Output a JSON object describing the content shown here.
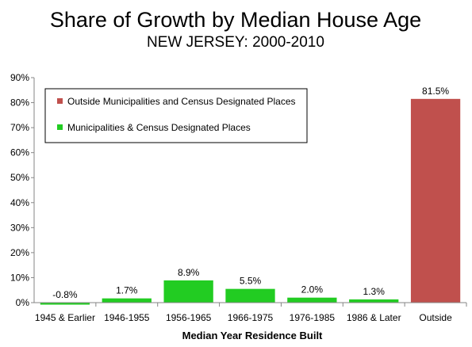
{
  "chart_data": {
    "type": "bar",
    "title": "Share of Growth by Median House Age",
    "subtitle": "NEW JERSEY: 2000-2010",
    "xlabel": "Median Year Residence Built",
    "ylabel": "",
    "ylim": [
      0,
      90
    ],
    "y_ticks": [
      0,
      10,
      20,
      30,
      40,
      50,
      60,
      70,
      80,
      90
    ],
    "y_tick_format": "{v}%",
    "categories": [
      "1945 & Earlier",
      "1946-1955",
      "1956-1965",
      "1966-1975",
      "1976-1985",
      "1986 & Later",
      "Outside"
    ],
    "values": [
      -0.8,
      1.7,
      8.9,
      5.5,
      2.0,
      1.3,
      81.5
    ],
    "data_labels": [
      "-0.8%",
      "1.7%",
      "8.9%",
      "5.5%",
      "2.0%",
      "1.3%",
      "81.5%"
    ],
    "series": [
      {
        "name": "Outside Municipalities and Census Designated Places",
        "color": "#c0504d",
        "categories": [
          "Outside"
        ]
      },
      {
        "name": "Municipalities & Census Designated Places",
        "color": "#22cc22",
        "categories": [
          "1945 & Earlier",
          "1946-1955",
          "1956-1965",
          "1966-1975",
          "1976-1985",
          "1986 & Later"
        ]
      }
    ],
    "legend": "top-left",
    "grid": false
  }
}
